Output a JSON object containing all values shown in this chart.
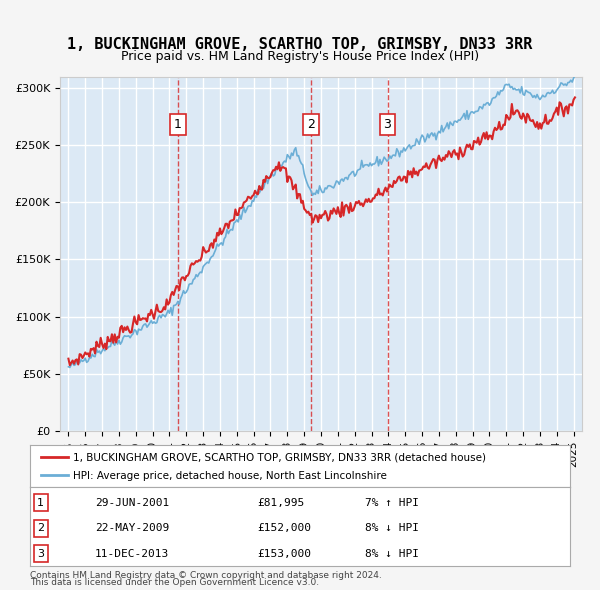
{
  "title": "1, BUCKINGHAM GROVE, SCARTHO TOP, GRIMSBY, DN33 3RR",
  "subtitle": "Price paid vs. HM Land Registry's House Price Index (HPI)",
  "legend_line1": "1, BUCKINGHAM GROVE, SCARTHO TOP, GRIMSBY, DN33 3RR (detached house)",
  "legend_line2": "HPI: Average price, detached house, North East Lincolnshire",
  "footer1": "Contains HM Land Registry data © Crown copyright and database right 2024.",
  "footer2": "This data is licensed under the Open Government Licence v3.0.",
  "transactions": [
    {
      "num": 1,
      "date": "29-JUN-2001",
      "price": "£81,995",
      "hpi": "7% ↑ HPI",
      "year": 2001.5
    },
    {
      "num": 2,
      "date": "22-MAY-2009",
      "price": "£152,000",
      "hpi": "8% ↓ HPI",
      "year": 2009.4
    },
    {
      "num": 3,
      "date": "11-DEC-2013",
      "price": "£153,000",
      "hpi": "8% ↓ HPI",
      "year": 2013.95
    }
  ],
  "hpi_color": "#6baed6",
  "price_color": "#d62728",
  "background_color": "#dce9f5",
  "plot_bg": "#dce9f5",
  "grid_color": "#ffffff",
  "ylim": [
    0,
    310000
  ],
  "xlim": [
    1994.5,
    2025.5
  ]
}
